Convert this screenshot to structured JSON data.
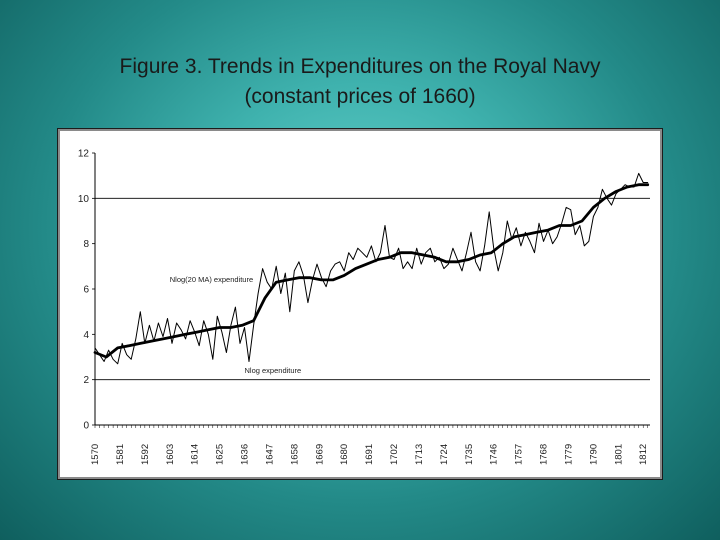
{
  "slide": {
    "title_line1": "Figure 3.  Trends in Expenditures on the Royal Navy",
    "title_line2": "(constant prices of 1660)"
  },
  "colors": {
    "background_center": "#66d2cc",
    "background_edge": "#0f5f5e",
    "line": "#000000",
    "plot_bg": "#ffffff"
  },
  "chart_data": {
    "type": "line",
    "title": "",
    "xlabel": "",
    "ylabel": "",
    "xlim": [
      1570,
      1815
    ],
    "ylim": [
      0,
      12
    ],
    "yticks": [
      0,
      2,
      4,
      6,
      8,
      10,
      12
    ],
    "yticklabels": [
      "0",
      "2",
      "4",
      "6",
      "8",
      "10",
      "12"
    ],
    "xticklabels": [
      "1570",
      "1581",
      "1592",
      "1603",
      "1614",
      "1625",
      "1636",
      "1647",
      "1658",
      "1669",
      "1680",
      "1691",
      "1702",
      "1713",
      "1724",
      "1735",
      "1746",
      "1757",
      "1768",
      "1779",
      "1790",
      "1801",
      "1812"
    ],
    "xtick_values": [
      1570,
      1581,
      1592,
      1603,
      1614,
      1625,
      1636,
      1647,
      1658,
      1669,
      1680,
      1691,
      1702,
      1713,
      1724,
      1735,
      1746,
      1757,
      1768,
      1779,
      1790,
      1801,
      1812
    ],
    "grid_y": [
      2,
      10
    ],
    "annotations": [
      {
        "text": "Nlog(20 MA) expenditure",
        "x": 1603,
        "y": 6.3
      },
      {
        "text": "Nlog expenditure",
        "x": 1636,
        "y": 2.3
      }
    ],
    "series": [
      {
        "name": "Nlog(20 MA) expenditure",
        "style": "thick",
        "x": [
          1570,
          1575,
          1580,
          1585,
          1590,
          1595,
          1600,
          1605,
          1610,
          1615,
          1620,
          1625,
          1630,
          1635,
          1640,
          1645,
          1650,
          1655,
          1660,
          1665,
          1670,
          1675,
          1680,
          1685,
          1690,
          1695,
          1700,
          1705,
          1710,
          1715,
          1720,
          1725,
          1730,
          1735,
          1740,
          1745,
          1750,
          1755,
          1760,
          1765,
          1770,
          1775,
          1780,
          1785,
          1790,
          1795,
          1800,
          1805,
          1810,
          1814
        ],
        "y": [
          3.2,
          3.0,
          3.4,
          3.5,
          3.6,
          3.7,
          3.8,
          3.9,
          4.0,
          4.1,
          4.2,
          4.3,
          4.3,
          4.4,
          4.6,
          5.6,
          6.3,
          6.4,
          6.5,
          6.5,
          6.4,
          6.4,
          6.6,
          6.9,
          7.1,
          7.3,
          7.4,
          7.6,
          7.6,
          7.5,
          7.4,
          7.2,
          7.2,
          7.3,
          7.5,
          7.6,
          8.0,
          8.3,
          8.4,
          8.5,
          8.6,
          8.8,
          8.8,
          9.0,
          9.6,
          10.0,
          10.3,
          10.5,
          10.6,
          10.6
        ]
      },
      {
        "name": "Nlog expenditure",
        "style": "thin",
        "x": [
          1570,
          1572,
          1574,
          1576,
          1578,
          1580,
          1582,
          1584,
          1586,
          1588,
          1590,
          1592,
          1594,
          1596,
          1598,
          1600,
          1602,
          1604,
          1606,
          1608,
          1610,
          1612,
          1614,
          1616,
          1618,
          1620,
          1622,
          1624,
          1626,
          1628,
          1630,
          1632,
          1634,
          1636,
          1638,
          1640,
          1642,
          1644,
          1646,
          1648,
          1650,
          1652,
          1654,
          1656,
          1658,
          1660,
          1662,
          1664,
          1666,
          1668,
          1670,
          1672,
          1674,
          1676,
          1678,
          1680,
          1682,
          1684,
          1686,
          1688,
          1690,
          1692,
          1694,
          1696,
          1698,
          1700,
          1702,
          1704,
          1706,
          1708,
          1710,
          1712,
          1714,
          1716,
          1718,
          1720,
          1722,
          1724,
          1726,
          1728,
          1730,
          1732,
          1734,
          1736,
          1738,
          1740,
          1742,
          1744,
          1746,
          1748,
          1750,
          1752,
          1754,
          1756,
          1758,
          1760,
          1762,
          1764,
          1766,
          1768,
          1770,
          1772,
          1774,
          1776,
          1778,
          1780,
          1782,
          1784,
          1786,
          1788,
          1790,
          1792,
          1794,
          1796,
          1798,
          1800,
          1802,
          1804,
          1806,
          1808,
          1810,
          1812,
          1814
        ],
        "y": [
          3.4,
          3.1,
          2.8,
          3.3,
          2.9,
          2.7,
          3.6,
          3.1,
          2.9,
          3.8,
          5.0,
          3.6,
          4.4,
          3.7,
          4.5,
          3.9,
          4.7,
          3.6,
          4.5,
          4.2,
          3.8,
          4.6,
          4.1,
          3.5,
          4.6,
          4.0,
          2.9,
          4.8,
          4.1,
          3.2,
          4.4,
          5.2,
          3.6,
          4.3,
          2.8,
          4.4,
          5.8,
          6.9,
          6.3,
          6.0,
          7.0,
          5.8,
          6.7,
          5.0,
          6.8,
          7.2,
          6.6,
          5.4,
          6.4,
          7.1,
          6.5,
          6.1,
          6.8,
          7.1,
          7.2,
          6.8,
          7.6,
          7.3,
          7.8,
          7.6,
          7.4,
          7.9,
          7.2,
          7.6,
          8.8,
          7.4,
          7.3,
          7.8,
          6.9,
          7.2,
          6.9,
          7.8,
          7.1,
          7.6,
          7.8,
          7.2,
          7.4,
          6.9,
          7.1,
          7.8,
          7.3,
          6.8,
          7.6,
          8.5,
          7.2,
          6.8,
          7.9,
          9.4,
          7.8,
          6.8,
          7.6,
          9.0,
          8.2,
          8.7,
          7.9,
          8.5,
          8.1,
          7.6,
          8.9,
          8.1,
          8.6,
          8.0,
          8.3,
          8.9,
          9.6,
          9.5,
          8.4,
          8.8,
          7.9,
          8.1,
          9.2,
          9.6,
          10.4,
          10.0,
          9.7,
          10.2,
          10.4,
          10.6,
          10.5,
          10.5,
          11.1,
          10.7,
          10.7
        ]
      }
    ]
  }
}
